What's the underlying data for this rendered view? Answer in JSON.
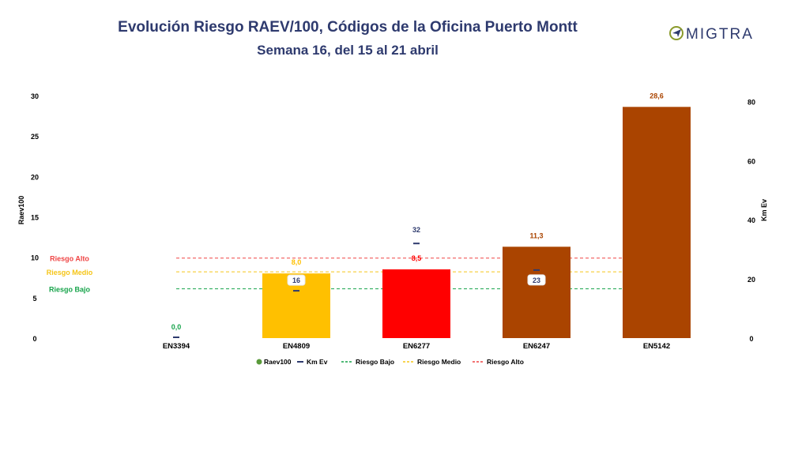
{
  "colors": {
    "title": "#2e3a6e",
    "axis_text": "#000000",
    "km_marker": "#2e3a6e",
    "risk_low": "#16a34a",
    "risk_medium": "#f5c518",
    "risk_high": "#ef4444",
    "logo_olive": "#8a9a2b",
    "logo_navy": "#2e3a6e"
  },
  "logo": {
    "text": "MIGTRA"
  },
  "chart_data": {
    "type": "bar",
    "title": "Evolución Riesgo RAEV/100, Códigos de la Oficina Puerto Montt",
    "subtitle": "Semana 16, del 15 al 21 abril",
    "ylabel": "Raev100",
    "y2label": "Km Ev",
    "ylim": [
      0,
      30
    ],
    "y2lim": [
      0,
      82
    ],
    "yticks": [
      0,
      5,
      10,
      15,
      20,
      25,
      30
    ],
    "y2ticks": [
      0,
      20,
      40,
      60,
      80
    ],
    "categories": [
      "EN3394",
      "EN4809",
      "EN6277",
      "EN6247",
      "EN5142"
    ],
    "raev": [
      0.0,
      8.0,
      8.5,
      11.3,
      28.6
    ],
    "raev_labels": [
      "0,0",
      "8,0",
      "8,5",
      "11,3",
      "28,6"
    ],
    "bar_colors": [
      "#16a34a",
      "#ffc000",
      "#ff0000",
      "#aa4400",
      "#aa4400"
    ],
    "km_ev": [
      null,
      16,
      32,
      23,
      null
    ],
    "km_labels": [
      "",
      "16",
      "32",
      "23",
      ""
    ],
    "thresholds": [
      {
        "name": "Riesgo Bajo",
        "value": 6.1,
        "color": "#16a34a"
      },
      {
        "name": "Riesgo Medio",
        "value": 8.2,
        "color": "#f5c518"
      },
      {
        "name": "Riesgo Alto",
        "value": 9.9,
        "color": "#ef4444"
      }
    ],
    "legend": {
      "position": "bottom",
      "items": [
        "Raev100",
        "Km Ev",
        "Riesgo Bajo",
        "Riesgo Medio",
        "Riesgo Alto"
      ]
    },
    "grid": false
  }
}
